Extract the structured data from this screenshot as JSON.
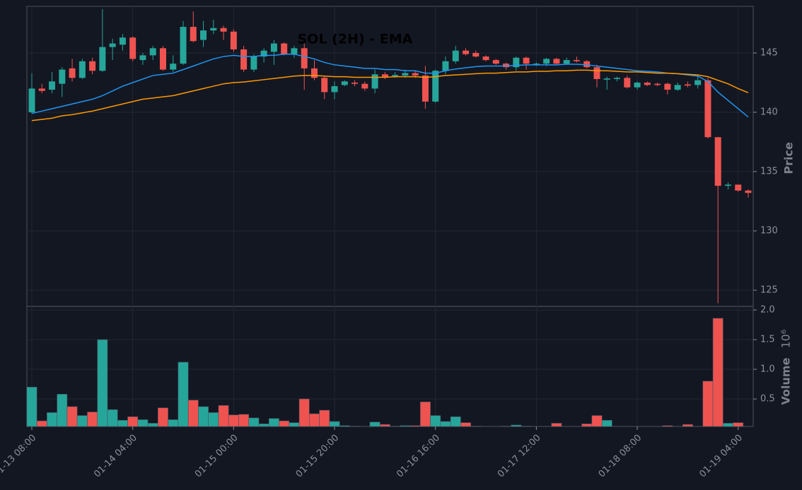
{
  "chart_data": {
    "type": "candlestick",
    "title": "SOL (2H) - EMA",
    "categories": [
      "01-13 08:00",
      null,
      null,
      null,
      null,
      null,
      null,
      null,
      null,
      null,
      "01-14 04:00",
      null,
      null,
      null,
      null,
      null,
      null,
      null,
      null,
      null,
      "01-15 00:00",
      null,
      null,
      null,
      null,
      null,
      null,
      null,
      null,
      null,
      "01-15 20:00",
      null,
      null,
      null,
      null,
      null,
      null,
      null,
      null,
      null,
      "01-16 16:00",
      null,
      null,
      null,
      null,
      null,
      null,
      null,
      null,
      null,
      "01-17 12:00",
      null,
      null,
      null,
      null,
      null,
      null,
      null,
      null,
      null,
      "01-18 08:00",
      null,
      null,
      null,
      null,
      null,
      null,
      null,
      null,
      null,
      "01-19 04:00",
      null
    ],
    "open": [
      140.0,
      142.0,
      141.9,
      142.4,
      143.7,
      142.9,
      144.3,
      143.5,
      145.5,
      145.7,
      146.3,
      144.4,
      144.8,
      145.4,
      143.6,
      144.1,
      147.2,
      146.1,
      146.9,
      147.1,
      146.8,
      145.3,
      143.6,
      144.7,
      145.1,
      145.8,
      144.9,
      145.4,
      143.7,
      142.9,
      141.7,
      142.3,
      142.5,
      142.4,
      142.0,
      143.2,
      143.05,
      143.1,
      143.3,
      143.1,
      140.9,
      143.5,
      144.3,
      145.2,
      145.0,
      144.7,
      144.4,
      144.1,
      143.8,
      144.6,
      144.05,
      144.1,
      144.5,
      144.1,
      144.4,
      144.3,
      143.8,
      142.75,
      142.8,
      142.9,
      142.1,
      142.5,
      142.4,
      142.4,
      141.9,
      142.35,
      142.3,
      142.7,
      137.9,
      133.8,
      133.9,
      133.4
    ],
    "high": [
      143.3,
      142.4,
      143.4,
      143.8,
      144.5,
      144.5,
      144.6,
      148.7,
      146.2,
      146.6,
      146.4,
      145.0,
      145.6,
      145.6,
      144.8,
      147.7,
      148.5,
      147.7,
      147.8,
      147.3,
      147.0,
      145.6,
      144.9,
      145.4,
      146.1,
      145.9,
      145.6,
      145.8,
      144.4,
      143.1,
      142.6,
      142.7,
      142.7,
      142.6,
      143.6,
      143.4,
      143.4,
      143.6,
      143.5,
      143.9,
      143.6,
      144.7,
      145.6,
      145.4,
      145.2,
      144.8,
      144.5,
      144.2,
      144.7,
      144.7,
      144.2,
      144.6,
      144.6,
      144.6,
      144.7,
      144.4,
      144.0,
      143.0,
      143.0,
      143.1,
      142.6,
      142.6,
      142.5,
      142.5,
      142.5,
      142.6,
      143.1,
      142.9,
      137.9,
      134.1,
      133.9,
      133.5
    ],
    "low": [
      139.9,
      141.6,
      141.6,
      141.3,
      142.6,
      142.8,
      143.2,
      143.4,
      144.4,
      145.2,
      144.3,
      144.0,
      144.4,
      143.5,
      143.4,
      144.0,
      145.9,
      145.5,
      146.6,
      146.1,
      145.1,
      143.4,
      143.4,
      144.2,
      144.0,
      144.8,
      144.6,
      141.9,
      142.7,
      141.1,
      141.1,
      142.2,
      142.2,
      141.8,
      141.6,
      142.8,
      142.9,
      142.9,
      142.9,
      140.3,
      140.8,
      143.2,
      144.1,
      144.8,
      144.6,
      144.3,
      144.0,
      143.6,
      143.5,
      143.6,
      143.9,
      143.9,
      144.0,
      144.0,
      144.2,
      143.7,
      142.1,
      141.9,
      142.6,
      142.0,
      141.9,
      142.2,
      142.2,
      141.5,
      141.8,
      142.1,
      142.0,
      137.8,
      123.9,
      133.5,
      133.3,
      132.8
    ],
    "close": [
      142.0,
      141.8,
      142.6,
      143.6,
      142.9,
      144.3,
      143.5,
      145.5,
      145.8,
      146.3,
      144.5,
      144.8,
      145.4,
      143.6,
      144.1,
      147.2,
      146.0,
      146.9,
      147.1,
      146.8,
      145.3,
      143.6,
      144.7,
      145.2,
      145.8,
      144.9,
      145.4,
      143.7,
      142.9,
      141.7,
      142.2,
      142.6,
      142.4,
      142.0,
      143.2,
      143.0,
      143.15,
      143.3,
      143.1,
      140.9,
      143.5,
      144.3,
      145.2,
      144.9,
      144.7,
      144.4,
      144.1,
      143.8,
      144.6,
      144.1,
      144.1,
      144.5,
      144.1,
      144.4,
      144.3,
      143.8,
      142.8,
      142.85,
      142.9,
      142.1,
      142.5,
      142.3,
      142.3,
      141.9,
      142.3,
      142.25,
      142.7,
      137.9,
      133.8,
      133.9,
      133.4,
      133.2
    ],
    "volume": [
      0.7,
      0.13,
      0.27,
      0.58,
      0.37,
      0.22,
      0.28,
      1.5,
      0.32,
      0.14,
      0.2,
      0.15,
      0.09,
      0.35,
      0.15,
      1.12,
      0.48,
      0.37,
      0.27,
      0.39,
      0.23,
      0.24,
      0.18,
      0.08,
      0.17,
      0.13,
      0.1,
      0.5,
      0.25,
      0.31,
      0.12,
      0.05,
      0.04,
      0.02,
      0.11,
      0.07,
      0.04,
      0.05,
      0.05,
      0.45,
      0.22,
      0.12,
      0.2,
      0.1,
      0.04,
      0.02,
      0.01,
      0.04,
      0.06,
      0.04,
      0.02,
      0.03,
      0.09,
      0.03,
      0.03,
      0.08,
      0.22,
      0.14,
      0.03,
      0.01,
      0.03,
      0.01,
      0.01,
      0.05,
      0.01,
      0.07,
      0.03,
      0.8,
      1.86,
      0.09,
      0.1,
      0.02
    ],
    "ema": [
      {
        "color": "#2196f3",
        "values": [
          139.9,
          140.1,
          140.3,
          140.5,
          140.7,
          140.9,
          141.1,
          141.4,
          141.8,
          142.2,
          142.5,
          142.8,
          143.1,
          143.2,
          143.3,
          143.6,
          143.9,
          144.2,
          144.5,
          144.7,
          144.8,
          144.7,
          144.7,
          144.8,
          144.8,
          144.9,
          144.9,
          144.7,
          144.5,
          144.2,
          144.0,
          143.9,
          143.8,
          143.7,
          143.7,
          143.6,
          143.6,
          143.5,
          143.5,
          143.3,
          143.3,
          143.5,
          143.65,
          143.75,
          143.85,
          143.9,
          143.9,
          143.9,
          143.95,
          144.0,
          144.0,
          144.0,
          144.0,
          144.05,
          144.05,
          144.0,
          143.9,
          143.8,
          143.7,
          143.6,
          143.5,
          143.45,
          143.4,
          143.3,
          143.25,
          143.15,
          143.05,
          142.6,
          141.7,
          141.0,
          140.3,
          139.6
        ]
      },
      {
        "color": "#ff9800",
        "values": [
          139.3,
          139.4,
          139.5,
          139.7,
          139.8,
          139.95,
          140.1,
          140.3,
          140.5,
          140.7,
          140.9,
          141.1,
          141.2,
          141.3,
          141.4,
          141.6,
          141.8,
          142.0,
          142.2,
          142.4,
          142.5,
          142.55,
          142.65,
          142.75,
          142.85,
          142.95,
          143.05,
          143.1,
          143.1,
          143.05,
          143.0,
          143.0,
          142.95,
          142.95,
          142.95,
          142.95,
          143.0,
          143.0,
          143.0,
          142.95,
          143.0,
          143.1,
          143.15,
          143.2,
          143.25,
          143.3,
          143.3,
          143.35,
          143.4,
          143.4,
          143.45,
          143.45,
          143.5,
          143.5,
          143.55,
          143.55,
          143.5,
          143.5,
          143.45,
          143.4,
          143.4,
          143.35,
          143.3,
          143.3,
          143.25,
          143.2,
          143.15,
          143.0,
          142.7,
          142.4,
          142.0,
          141.65
        ]
      }
    ],
    "up_color": "#26a69a",
    "down_color": "#ef5350",
    "ylabel": "Price",
    "ylim": [
      123.63,
      148.93
    ],
    "yticks": [
      125,
      130,
      135,
      140,
      145
    ],
    "volume_label": "Volume",
    "volume_offset": "10⁶",
    "volume_ylim": [
      0.036,
      2.06
    ],
    "volume_yticks": [
      0.5,
      {
        "value": 1,
        "label": "1.0"
      },
      1.5,
      {
        "value": 2,
        "label": "2.0"
      }
    ],
    "grid": true
  }
}
